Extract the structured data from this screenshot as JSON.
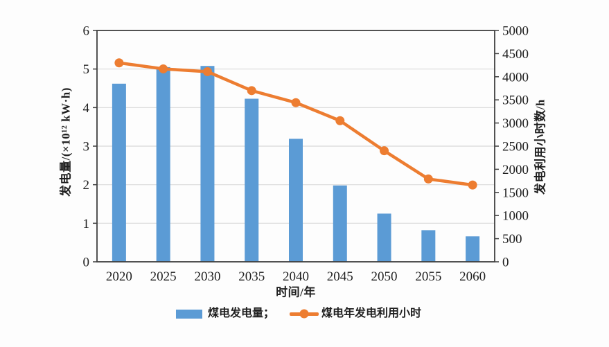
{
  "chart_data": {
    "type": "bar+line",
    "categories": [
      "2020",
      "2025",
      "2030",
      "2035",
      "2040",
      "2045",
      "2050",
      "2055",
      "2060"
    ],
    "series": [
      {
        "name": "煤电发电量",
        "legend_label": "煤电发电量；",
        "type": "bar",
        "axis": "left",
        "color": "#5b9bd5",
        "values": [
          4.62,
          5.05,
          5.08,
          4.23,
          3.19,
          1.98,
          1.25,
          0.82,
          0.66
        ]
      },
      {
        "name": "煤电年发电利用小时",
        "legend_label": "煤电年发电利用小时",
        "type": "line",
        "axis": "right",
        "color": "#ed7d31",
        "values": [
          4300,
          4170,
          4110,
          3700,
          3440,
          3050,
          2400,
          1790,
          1660
        ]
      }
    ],
    "left_axis": {
      "title": "发电量/(×10¹² kW·h)",
      "min": 0,
      "max": 6,
      "step": 1,
      "ticks": [
        0,
        1,
        2,
        3,
        4,
        5,
        6
      ]
    },
    "right_axis": {
      "title": "发电利用小时数/h",
      "min": 0,
      "max": 5000,
      "step": 500,
      "ticks": [
        0,
        500,
        1000,
        1500,
        2000,
        2500,
        3000,
        3500,
        4000,
        4500,
        5000
      ]
    },
    "x_axis": {
      "title": "时间/年"
    },
    "grid": true,
    "legend_position": "bottom",
    "colors": {
      "bar": "#5b9bd5",
      "line": "#ed7d31",
      "grid": "#d9d9d9",
      "axis": "#3f3f3f",
      "text": "#1f1f1f",
      "background": "#fdfdfd"
    }
  }
}
